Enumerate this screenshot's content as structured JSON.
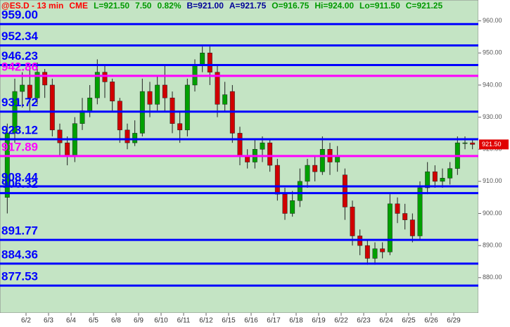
{
  "chart_data": {
    "type": "candlestick",
    "header": [
      {
        "text": "@ES.D - 13 min",
        "color": "#ff0000"
      },
      {
        "text": "CME",
        "color": "#ff0000"
      },
      {
        "text": "L=921.50",
        "color": "#009900"
      },
      {
        "text": "7.50",
        "color": "#009900"
      },
      {
        "text": "0.82%",
        "color": "#009900"
      },
      {
        "text": "B=921.00",
        "color": "#000099"
      },
      {
        "text": "A=921.75",
        "color": "#000099"
      },
      {
        "text": "O=916.75",
        "color": "#009900"
      },
      {
        "text": "Hi=924.00",
        "color": "#009900"
      },
      {
        "text": "Lo=911.50",
        "color": "#009900"
      },
      {
        "text": "C=921.25",
        "color": "#009900"
      }
    ],
    "categories": [
      null,
      null,
      null,
      "6/2",
      null,
      null,
      "6/3",
      null,
      null,
      "6/4",
      null,
      null,
      "6/5",
      null,
      null,
      "6/8",
      null,
      null,
      "6/9",
      null,
      null,
      "6/10",
      null,
      null,
      "6/11",
      null,
      null,
      "6/12",
      null,
      null,
      "6/15",
      null,
      null,
      "6/16",
      null,
      null,
      "6/17",
      null,
      null,
      "6/18",
      null,
      null,
      "6/19",
      null,
      null,
      "6/22",
      null,
      null,
      "6/23",
      null,
      null,
      "6/24",
      null,
      null,
      "6/25",
      null,
      null,
      "6/26",
      null,
      null,
      "6/29",
      null,
      null
    ],
    "open": [
      905,
      925,
      938,
      940,
      936,
      944,
      940,
      926,
      922,
      918,
      928,
      932,
      936,
      944,
      941,
      935,
      926,
      922,
      925,
      938,
      934,
      940,
      936,
      928,
      926,
      940,
      946,
      950,
      944,
      934,
      938,
      925,
      918,
      916,
      920,
      922,
      915,
      906,
      900,
      904,
      910,
      915,
      913,
      920,
      916,
      912,
      902,
      893,
      890,
      886,
      889,
      888,
      903,
      900,
      898,
      893,
      908,
      913,
      910,
      911,
      914,
      922,
      922
    ],
    "high": [
      928,
      942,
      944,
      946,
      947,
      945,
      942,
      928,
      924,
      930,
      936,
      940,
      948,
      946,
      942,
      936,
      928,
      929,
      942,
      941,
      943,
      946,
      938,
      932,
      942,
      948,
      952,
      952,
      946,
      941,
      940,
      927,
      920,
      923,
      924,
      923,
      917,
      908,
      907,
      914,
      917,
      918,
      924,
      922,
      921,
      914,
      904,
      895,
      892,
      891,
      891,
      906,
      905,
      903,
      900,
      910,
      916,
      915,
      914,
      916,
      924,
      924,
      923
    ],
    "low": [
      900,
      922,
      933,
      932,
      934,
      936,
      924,
      918,
      915,
      916,
      926,
      930,
      934,
      936,
      932,
      922,
      920,
      921,
      924,
      930,
      932,
      932,
      925,
      922,
      924,
      938,
      944,
      940,
      930,
      932,
      922,
      915,
      914,
      914,
      916,
      913,
      904,
      898,
      899,
      902,
      908,
      910,
      912,
      912,
      913,
      898,
      890,
      887,
      884,
      884,
      886,
      887,
      897,
      895,
      891,
      892,
      906,
      908,
      908,
      909,
      912,
      920,
      920
    ],
    "close": [
      925,
      938,
      940,
      936,
      944,
      940,
      926,
      922,
      918,
      928,
      932,
      936,
      944,
      941,
      935,
      926,
      922,
      925,
      938,
      934,
      940,
      936,
      928,
      926,
      940,
      946,
      950,
      944,
      934,
      937,
      925,
      918,
      916,
      920,
      922,
      915,
      906,
      900,
      904,
      910,
      915,
      913,
      920,
      916,
      918,
      902,
      893,
      890,
      886,
      889,
      888,
      903,
      900,
      898,
      893,
      908,
      913,
      910,
      911,
      914,
      922,
      922,
      921.5
    ],
    "up_color": "#00a000",
    "down_color": "#d00000",
    "levels": [
      {
        "price": {
          "value": 959,
          "label": "959.00"
        },
        "color": "#0000ff"
      },
      {
        "price": 952.34,
        "color": "#0000ff"
      },
      {
        "price": 946.23,
        "color": "#0000ff"
      },
      {
        "price": 942.86,
        "color": "#ff00ff"
      },
      {
        "price": 931.72,
        "color": "#0000ff"
      },
      {
        "price": 923.12,
        "color": "#0000ff"
      },
      {
        "price": 917.89,
        "color": "#ff00ff"
      },
      {
        "price": 908.44,
        "color": "#0000ff"
      },
      {
        "price": 906.32,
        "color": "#0000ff"
      },
      {
        "price": 891.77,
        "color": "#0000ff"
      },
      {
        "price": 884.36,
        "color": "#0000ff"
      },
      {
        "price": 877.53,
        "color": "#0000ff"
      }
    ],
    "last_price": {
      "value": 921.5,
      "label": "921.50"
    },
    "ylim": [
      869,
      966.5
    ],
    "yticks": [
      {
        "value": 880,
        "label": "880.00"
      },
      {
        "value": 890,
        "label": "890.00"
      },
      {
        "value": 900,
        "label": "900.00"
      },
      {
        "value": 910,
        "label": "910.00"
      },
      {
        "value": 920,
        "label": "920.00"
      },
      {
        "value": 930,
        "label": "930.00"
      },
      {
        "value": 940,
        "label": "940.00"
      },
      {
        "value": 950,
        "label": "950.00"
      },
      {
        "value": 960,
        "label": "960.00"
      }
    ]
  }
}
